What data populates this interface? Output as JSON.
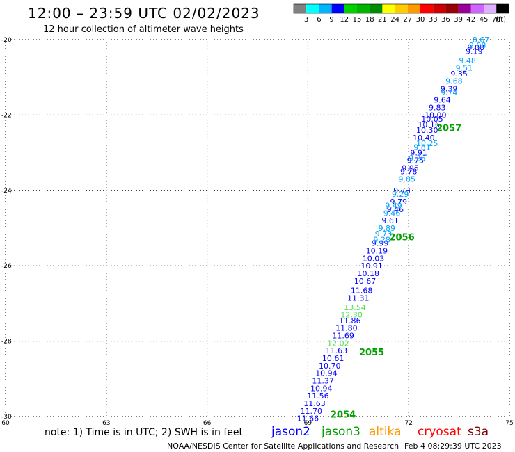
{
  "title": "12:00 – 23:59 UTC 02/02/2023",
  "subtitle": "12 hour collection of altimeter wave heights",
  "legend": {
    "ticks": [
      "3",
      "6",
      "9",
      "12",
      "15",
      "18",
      "21",
      "24",
      "27",
      "30",
      "33",
      "36",
      "39",
      "42",
      "45",
      "70"
    ],
    "unit": "(ft)",
    "colors": [
      "#808080",
      "#00ffff",
      "#00b4ff",
      "#0000ff",
      "#00d200",
      "#00b400",
      "#008c00",
      "#ffff00",
      "#ffcc00",
      "#ff9900",
      "#ff0000",
      "#cc0000",
      "#990000",
      "#990099",
      "#cc66ff",
      "#e0b0ff",
      "#000000"
    ]
  },
  "note": "note: 1) Time is in UTC; 2) SWH is in feet",
  "satellites": [
    {
      "name": "jason2",
      "color": "#0000ff"
    },
    {
      "name": "jason3",
      "color": "#00a000"
    },
    {
      "name": "altika",
      "color": "#ff9900"
    },
    {
      "name": "cryosat",
      "color": "#ff0000"
    },
    {
      "name": "s3a",
      "color": "#800000"
    }
  ],
  "footer": {
    "agency": "NOAA/NESDIS Center for Satellite Applications and Research",
    "timestamp": "Feb  4 08:29:39 UTC 2023"
  },
  "chart_data": {
    "type": "scatter",
    "xlim": [
      60,
      75
    ],
    "ylim": [
      -30,
      -20
    ],
    "x_ticks": [
      60,
      63,
      66,
      69,
      72,
      75
    ],
    "y_ticks": [
      -20,
      -22,
      -24,
      -26,
      -28,
      -30
    ],
    "grid": true,
    "series": [
      {
        "color": "#0000ff",
        "points": [
          {
            "x": 74.0,
            "y": -20.2,
            "v": "9.08"
          },
          {
            "x": 73.95,
            "y": -20.3,
            "v": "9.19"
          },
          {
            "x": 73.5,
            "y": -20.9,
            "v": "9.35"
          },
          {
            "x": 73.2,
            "y": -21.3,
            "v": "9.39"
          },
          {
            "x": 73.0,
            "y": -21.6,
            "v": "9.64"
          },
          {
            "x": 72.85,
            "y": -21.8,
            "v": "9.83"
          },
          {
            "x": 72.8,
            "y": -22.0,
            "v": "10.00"
          },
          {
            "x": 72.7,
            "y": -22.1,
            "v": "10.05"
          },
          {
            "x": 72.6,
            "y": -22.25,
            "v": "10.16"
          },
          {
            "x": 72.55,
            "y": -22.4,
            "v": "10.30"
          },
          {
            "x": 72.45,
            "y": -22.6,
            "v": "10.40"
          },
          {
            "x": 72.3,
            "y": -23.0,
            "v": "9.91"
          },
          {
            "x": 72.2,
            "y": -23.2,
            "v": "9.75"
          },
          {
            "x": 72.05,
            "y": -23.4,
            "v": "9.95"
          },
          {
            "x": 72.0,
            "y": -23.5,
            "v": "9.78"
          },
          {
            "x": 71.7,
            "y": -24.3,
            "v": "9.79"
          },
          {
            "x": 71.6,
            "y": -24.5,
            "v": "9.46"
          },
          {
            "x": 71.45,
            "y": -24.8,
            "v": "9.61"
          },
          {
            "x": 71.8,
            "y": -24.0,
            "v": "9.73"
          },
          {
            "x": 71.15,
            "y": -25.4,
            "v": "9.99"
          },
          {
            "x": 71.05,
            "y": -25.6,
            "v": "10.19"
          },
          {
            "x": 70.95,
            "y": -25.8,
            "v": "10.03"
          },
          {
            "x": 70.9,
            "y": -26.0,
            "v": "10.91"
          },
          {
            "x": 70.8,
            "y": -26.2,
            "v": "10.18"
          },
          {
            "x": 70.7,
            "y": -26.4,
            "v": "10.67"
          },
          {
            "x": 70.6,
            "y": -26.65,
            "v": "11.68"
          },
          {
            "x": 70.5,
            "y": -26.85,
            "v": "11.31"
          },
          {
            "x": 70.25,
            "y": -27.45,
            "v": "11.86"
          },
          {
            "x": 70.15,
            "y": -27.65,
            "v": "11.80"
          },
          {
            "x": 70.05,
            "y": -27.85,
            "v": "11.69"
          },
          {
            "x": 69.85,
            "y": -28.25,
            "v": "11.63"
          },
          {
            "x": 69.75,
            "y": -28.45,
            "v": "10.61"
          },
          {
            "x": 69.65,
            "y": -28.65,
            "v": "10.70"
          },
          {
            "x": 69.55,
            "y": -28.85,
            "v": "10.94"
          },
          {
            "x": 69.45,
            "y": -29.05,
            "v": "11.37"
          },
          {
            "x": 69.4,
            "y": -29.25,
            "v": "10.94"
          },
          {
            "x": 69.3,
            "y": -29.45,
            "v": "11.56"
          },
          {
            "x": 69.2,
            "y": -29.65,
            "v": "11.63"
          },
          {
            "x": 69.1,
            "y": -29.85,
            "v": "11.70"
          },
          {
            "x": 69.0,
            "y": -30.05,
            "v": "11.66"
          }
        ]
      },
      {
        "color": "#00a0ff",
        "points": [
          {
            "x": 74.15,
            "y": -20.0,
            "v": "8.67"
          },
          {
            "x": 74.05,
            "y": -20.15,
            "v": "9.08"
          },
          {
            "x": 73.75,
            "y": -20.55,
            "v": "9.48"
          },
          {
            "x": 73.65,
            "y": -20.75,
            "v": "9.51"
          },
          {
            "x": 73.35,
            "y": -21.1,
            "v": "9.68"
          },
          {
            "x": 73.2,
            "y": -21.4,
            "v": "9.74"
          },
          {
            "x": 72.55,
            "y": -22.75,
            "v": "10.25"
          },
          {
            "x": 72.4,
            "y": -22.85,
            "v": "9.81"
          },
          {
            "x": 72.25,
            "y": -23.15,
            "v": "9.26"
          },
          {
            "x": 71.95,
            "y": -23.7,
            "v": "9.85"
          },
          {
            "x": 71.75,
            "y": -24.1,
            "v": "9.29"
          },
          {
            "x": 71.55,
            "y": -24.4,
            "v": "9.49"
          },
          {
            "x": 71.5,
            "y": -24.6,
            "v": "9.46"
          },
          {
            "x": 71.35,
            "y": -25.0,
            "v": "9.89"
          },
          {
            "x": 71.25,
            "y": -25.15,
            "v": "9.73"
          },
          {
            "x": 71.2,
            "y": -25.3,
            "v": "9.28"
          }
        ]
      },
      {
        "color": "#50e050",
        "points": [
          {
            "x": 70.4,
            "y": -27.1,
            "v": "13.54"
          },
          {
            "x": 70.3,
            "y": -27.3,
            "v": "12.30"
          },
          {
            "x": 69.9,
            "y": -28.05,
            "v": "12.02"
          }
        ]
      }
    ],
    "pass_labels": [
      {
        "text": "2057",
        "x": 73.2,
        "y": -22.35,
        "color": "#00a000"
      },
      {
        "text": "2056",
        "x": 71.8,
        "y": -25.25,
        "color": "#00a000"
      },
      {
        "text": "2055",
        "x": 70.9,
        "y": -28.3,
        "color": "#00a000"
      },
      {
        "text": "2054",
        "x": 70.05,
        "y": -29.95,
        "color": "#00a000"
      }
    ]
  }
}
